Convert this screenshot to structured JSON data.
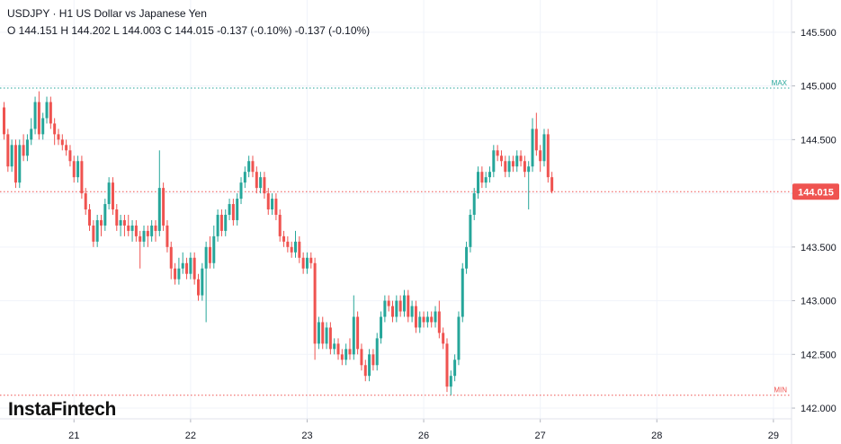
{
  "legend": {
    "title": "USDJPY · H1 US Dollar vs Japanese Yen",
    "ohlc": "O 144.151 H 144.202 L 144.003 C 144.015 -0.137 (-0.10%) -0.137 (-0.10%)"
  },
  "watermark": "InstaFintech",
  "colors": {
    "up": "#26a69a",
    "down": "#ef5350",
    "max_line": "#26a69a",
    "min_line": "#ef5350",
    "current_price": "#ef5350",
    "grid": "#f0f3fa",
    "axis_text": "#131722"
  },
  "chart_data": {
    "type": "candlestick",
    "symbol": "USDJPY",
    "timeframe": "H1",
    "y_axis": {
      "range": [
        141.9,
        145.75
      ],
      "ticks": [
        142.0,
        142.5,
        143.0,
        143.5,
        144.0,
        144.5,
        145.0,
        145.5
      ],
      "tick_labels": [
        "142.000",
        "142.500",
        "143.000",
        "143.500",
        "144.000",
        "144.500",
        "145.000",
        "145.500"
      ],
      "position": "right"
    },
    "x_axis": {
      "tick_labels": [
        "21",
        "22",
        "23",
        "26",
        "27",
        "28",
        "29"
      ],
      "label_candle_index": [
        18,
        48,
        78,
        108,
        138,
        168,
        198
      ]
    },
    "grid": true,
    "max_line": {
      "label": "MAX",
      "value": 144.98
    },
    "min_line": {
      "label": "MIN",
      "value": 142.12
    },
    "current_price": {
      "label": "144.015",
      "value": 144.015
    },
    "candles": [
      [
        144.8,
        144.55,
        144.85,
        144.5
      ],
      [
        144.55,
        144.25,
        144.6,
        144.2
      ],
      [
        144.25,
        144.45,
        144.5,
        144.2
      ],
      [
        144.45,
        144.1,
        144.5,
        144.05
      ],
      [
        144.1,
        144.45,
        144.5,
        144.05
      ],
      [
        144.45,
        144.35,
        144.55,
        144.3
      ],
      [
        144.35,
        144.5,
        144.55,
        144.3
      ],
      [
        144.5,
        144.6,
        144.7,
        144.45
      ],
      [
        144.6,
        144.85,
        144.9,
        144.55
      ],
      [
        144.85,
        144.55,
        144.95,
        144.5
      ],
      [
        144.55,
        144.7,
        144.75,
        144.5
      ],
      [
        144.7,
        144.85,
        144.9,
        144.65
      ],
      [
        144.85,
        144.65,
        144.9,
        144.6
      ],
      [
        144.65,
        144.55,
        144.7,
        144.45
      ],
      [
        144.55,
        144.5,
        144.6,
        144.45
      ],
      [
        144.5,
        144.45,
        144.55,
        144.4
      ],
      [
        144.45,
        144.4,
        144.5,
        144.35
      ],
      [
        144.4,
        144.3,
        144.45,
        144.25
      ],
      [
        144.3,
        144.15,
        144.35,
        144.1
      ],
      [
        144.15,
        144.3,
        144.35,
        144.1
      ],
      [
        144.3,
        144.0,
        144.35,
        143.95
      ],
      [
        144.0,
        143.85,
        144.05,
        143.8
      ],
      [
        143.85,
        143.7,
        143.9,
        143.65
      ],
      [
        143.7,
        143.55,
        143.75,
        143.5
      ],
      [
        143.55,
        143.75,
        143.8,
        143.5
      ],
      [
        143.75,
        143.7,
        143.8,
        143.6
      ],
      [
        143.7,
        143.9,
        143.95,
        143.65
      ],
      [
        143.9,
        144.1,
        144.15,
        143.85
      ],
      [
        144.1,
        143.85,
        144.15,
        143.8
      ],
      [
        143.85,
        143.7,
        143.9,
        143.65
      ],
      [
        143.7,
        143.75,
        143.8,
        143.6
      ],
      [
        143.75,
        143.7,
        143.8,
        143.6
      ],
      [
        143.7,
        143.65,
        143.8,
        143.6
      ],
      [
        143.65,
        143.7,
        143.75,
        143.55
      ],
      [
        143.7,
        143.6,
        143.75,
        143.55
      ],
      [
        143.6,
        143.55,
        143.65,
        143.3
      ],
      [
        143.55,
        143.65,
        143.7,
        143.5
      ],
      [
        143.65,
        143.6,
        143.7,
        143.5
      ],
      [
        143.6,
        143.7,
        143.75,
        143.55
      ],
      [
        143.7,
        143.65,
        143.75,
        143.55
      ],
      [
        143.65,
        144.05,
        144.4,
        143.6
      ],
      [
        144.05,
        143.7,
        144.1,
        143.65
      ],
      [
        143.7,
        143.5,
        143.75,
        143.45
      ],
      [
        143.5,
        143.3,
        143.55,
        143.2
      ],
      [
        143.3,
        143.2,
        143.35,
        143.15
      ],
      [
        143.2,
        143.3,
        143.4,
        143.15
      ],
      [
        143.3,
        143.35,
        143.45,
        143.25
      ],
      [
        143.35,
        143.25,
        143.4,
        143.2
      ],
      [
        143.25,
        143.4,
        143.45,
        143.2
      ],
      [
        143.4,
        143.2,
        143.45,
        143.15
      ],
      [
        143.2,
        143.05,
        143.25,
        143.0
      ],
      [
        143.05,
        143.3,
        143.35,
        143.0
      ],
      [
        143.3,
        143.5,
        143.55,
        142.8
      ],
      [
        143.5,
        143.35,
        143.6,
        143.3
      ],
      [
        143.35,
        143.6,
        143.7,
        143.3
      ],
      [
        143.6,
        143.8,
        143.85,
        143.55
      ],
      [
        143.8,
        143.65,
        143.85,
        143.6
      ],
      [
        143.65,
        143.8,
        143.85,
        143.6
      ],
      [
        143.8,
        143.9,
        143.95,
        143.75
      ],
      [
        143.9,
        143.75,
        143.95,
        143.7
      ],
      [
        143.75,
        143.95,
        144.0,
        143.7
      ],
      [
        143.95,
        144.1,
        144.15,
        143.9
      ],
      [
        144.1,
        144.2,
        144.25,
        144.05
      ],
      [
        144.2,
        144.3,
        144.35,
        144.15
      ],
      [
        144.3,
        144.2,
        144.35,
        144.15
      ],
      [
        144.2,
        144.05,
        144.25,
        144.0
      ],
      [
        144.05,
        144.15,
        144.2,
        144.0
      ],
      [
        144.15,
        144.0,
        144.2,
        143.95
      ],
      [
        144.0,
        143.85,
        144.05,
        143.8
      ],
      [
        143.85,
        143.95,
        144.0,
        143.8
      ],
      [
        143.95,
        143.8,
        144.0,
        143.75
      ],
      [
        143.8,
        143.6,
        143.85,
        143.55
      ],
      [
        143.6,
        143.55,
        143.65,
        143.5
      ],
      [
        143.55,
        143.5,
        143.6,
        143.45
      ],
      [
        143.5,
        143.45,
        143.55,
        143.4
      ],
      [
        143.45,
        143.55,
        143.65,
        143.4
      ],
      [
        143.55,
        143.4,
        143.6,
        143.35
      ],
      [
        143.4,
        143.3,
        143.45,
        143.25
      ],
      [
        143.3,
        143.4,
        143.45,
        143.25
      ],
      [
        143.4,
        143.35,
        143.45,
        143.3
      ],
      [
        143.35,
        142.6,
        143.4,
        142.45
      ],
      [
        142.6,
        142.8,
        142.85,
        142.55
      ],
      [
        142.8,
        142.6,
        142.85,
        142.55
      ],
      [
        142.6,
        142.75,
        142.8,
        142.55
      ],
      [
        142.75,
        142.55,
        142.8,
        142.5
      ],
      [
        142.55,
        142.6,
        142.65,
        142.5
      ],
      [
        142.6,
        142.5,
        142.65,
        142.45
      ],
      [
        142.5,
        142.45,
        142.55,
        142.4
      ],
      [
        142.45,
        142.55,
        142.6,
        142.4
      ],
      [
        142.55,
        142.5,
        142.65,
        142.45
      ],
      [
        142.5,
        142.85,
        143.05,
        142.45
      ],
      [
        142.85,
        142.55,
        142.9,
        142.5
      ],
      [
        142.55,
        142.4,
        142.6,
        142.35
      ],
      [
        142.4,
        142.3,
        142.45,
        142.25
      ],
      [
        142.3,
        142.5,
        142.55,
        142.25
      ],
      [
        142.5,
        142.4,
        142.55,
        142.35
      ],
      [
        142.4,
        142.65,
        142.7,
        142.35
      ],
      [
        142.65,
        142.85,
        142.9,
        142.6
      ],
      [
        142.85,
        143.0,
        143.05,
        142.8
      ],
      [
        143.0,
        142.95,
        143.05,
        142.9
      ],
      [
        142.95,
        142.85,
        143.0,
        142.8
      ],
      [
        142.85,
        143.0,
        143.05,
        142.8
      ],
      [
        143.0,
        142.9,
        143.05,
        142.85
      ],
      [
        142.9,
        143.05,
        143.1,
        142.85
      ],
      [
        143.05,
        142.85,
        143.1,
        142.8
      ],
      [
        142.85,
        142.95,
        143.0,
        142.8
      ],
      [
        142.95,
        142.75,
        143.0,
        142.7
      ],
      [
        142.75,
        142.85,
        142.9,
        142.7
      ],
      [
        142.85,
        142.8,
        142.9,
        142.75
      ],
      [
        142.8,
        142.85,
        142.9,
        142.75
      ],
      [
        142.85,
        142.8,
        142.9,
        142.75
      ],
      [
        142.8,
        142.9,
        142.95,
        142.75
      ],
      [
        142.9,
        142.7,
        143.0,
        142.65
      ],
      [
        142.7,
        142.6,
        142.75,
        142.55
      ],
      [
        142.6,
        142.2,
        142.65,
        142.15
      ],
      [
        142.2,
        142.3,
        142.35,
        142.12
      ],
      [
        142.3,
        142.45,
        142.5,
        142.25
      ],
      [
        142.45,
        142.85,
        142.9,
        142.4
      ],
      [
        142.85,
        143.3,
        143.35,
        142.8
      ],
      [
        143.3,
        143.5,
        143.55,
        143.25
      ],
      [
        143.5,
        143.8,
        143.85,
        143.45
      ],
      [
        143.8,
        144.0,
        144.05,
        143.75
      ],
      [
        144.0,
        144.2,
        144.25,
        143.95
      ],
      [
        144.2,
        144.1,
        144.25,
        144.05
      ],
      [
        144.1,
        144.15,
        144.2,
        144.05
      ],
      [
        144.15,
        144.2,
        144.25,
        144.1
      ],
      [
        144.2,
        144.4,
        144.45,
        144.15
      ],
      [
        144.4,
        144.35,
        144.45,
        144.3
      ],
      [
        144.35,
        144.3,
        144.4,
        144.25
      ],
      [
        144.3,
        144.2,
        144.35,
        144.15
      ],
      [
        144.2,
        144.3,
        144.35,
        144.15
      ],
      [
        144.3,
        144.25,
        144.35,
        144.2
      ],
      [
        144.25,
        144.35,
        144.4,
        144.2
      ],
      [
        144.35,
        144.3,
        144.4,
        144.25
      ],
      [
        144.3,
        144.2,
        144.35,
        144.15
      ],
      [
        144.2,
        144.25,
        144.3,
        143.85
      ],
      [
        144.25,
        144.6,
        144.7,
        144.2
      ],
      [
        144.6,
        144.4,
        144.75,
        144.35
      ],
      [
        144.4,
        144.3,
        144.45,
        144.2
      ],
      [
        144.3,
        144.55,
        144.6,
        144.25
      ],
      [
        144.55,
        144.15,
        144.6,
        144.1
      ],
      [
        144.15,
        144.02,
        144.2,
        144.0
      ]
    ]
  }
}
